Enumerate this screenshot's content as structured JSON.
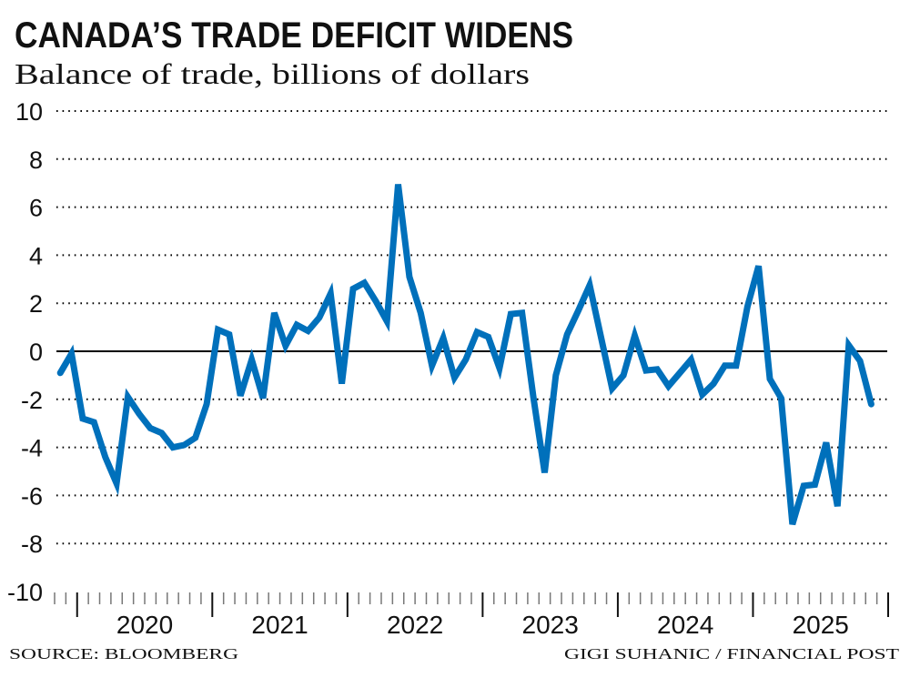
{
  "title": "CANADA’S TRADE DEFICIT WIDENS",
  "subtitle": "Balance of trade, billions of dollars",
  "source": "SOURCE: BLOOMBERG",
  "credit": "GIGI SUHANIC / FINANCIAL POST",
  "colors": {
    "line": "#0070bb",
    "zero_line": "#000000",
    "grid": "#000000"
  },
  "chart_data": {
    "type": "line",
    "title": "CANADA’S TRADE DEFICIT WIDENS",
    "subtitle": "Balance of trade, billions of dollars",
    "xlabel": "",
    "ylabel": "",
    "ylim": [
      -10,
      10
    ],
    "yticks": [
      10,
      8,
      6,
      4,
      2,
      0,
      -2,
      -4,
      -6,
      -8,
      -10
    ],
    "xtick_labels": [
      "2020",
      "2021",
      "2022",
      "2023",
      "2024",
      "2025"
    ],
    "xlim": [
      "2019-11",
      "2025-12"
    ],
    "grid": "horizontal dotted",
    "legend": "none",
    "x": [
      "2019-11",
      "2019-12",
      "2020-01",
      "2020-02",
      "2020-03",
      "2020-04",
      "2020-05",
      "2020-06",
      "2020-07",
      "2020-08",
      "2020-09",
      "2020-10",
      "2020-11",
      "2020-12",
      "2021-01",
      "2021-02",
      "2021-03",
      "2021-04",
      "2021-05",
      "2021-06",
      "2021-07",
      "2021-08",
      "2021-09",
      "2021-10",
      "2021-11",
      "2021-12",
      "2022-01",
      "2022-02",
      "2022-03",
      "2022-04",
      "2022-05",
      "2022-06",
      "2022-07",
      "2022-08",
      "2022-09",
      "2022-10",
      "2022-11",
      "2022-12",
      "2023-01",
      "2023-02",
      "2023-03",
      "2023-04",
      "2023-05",
      "2023-06",
      "2023-07",
      "2023-08",
      "2023-09",
      "2023-10",
      "2023-11",
      "2023-12",
      "2024-01",
      "2024-02",
      "2024-03",
      "2024-04",
      "2024-05",
      "2024-06",
      "2024-07",
      "2024-08",
      "2024-09",
      "2024-10",
      "2024-11",
      "2024-12",
      "2025-01",
      "2025-02",
      "2025-03",
      "2025-04",
      "2025-05",
      "2025-06",
      "2025-07",
      "2025-08",
      "2025-09",
      "2025-10",
      "2025-11"
    ],
    "values": [
      -0.9,
      -0.1,
      -2.8,
      -2.95,
      -4.4,
      -5.5,
      -1.9,
      -2.6,
      -3.2,
      -3.4,
      -4.0,
      -3.9,
      -3.6,
      -2.2,
      0.9,
      0.7,
      -1.85,
      -0.35,
      -1.95,
      1.6,
      0.23,
      1.1,
      0.85,
      1.4,
      2.4,
      -1.35,
      2.6,
      2.85,
      2.1,
      1.25,
      6.95,
      3.1,
      1.6,
      -0.6,
      0.55,
      -1.1,
      -0.35,
      0.8,
      0.6,
      -0.7,
      1.55,
      1.6,
      -1.9,
      -5.05,
      -1.0,
      0.7,
      1.7,
      2.75,
      0.6,
      -1.55,
      -1.0,
      0.65,
      -0.8,
      -0.75,
      -1.45,
      -0.9,
      -0.35,
      -1.8,
      -1.35,
      -0.6,
      -0.6,
      1.85,
      3.55,
      -1.15,
      -1.95,
      -7.2,
      -5.6,
      -5.55,
      -3.8,
      -6.45,
      0.25,
      -0.4,
      -2.2
    ]
  }
}
